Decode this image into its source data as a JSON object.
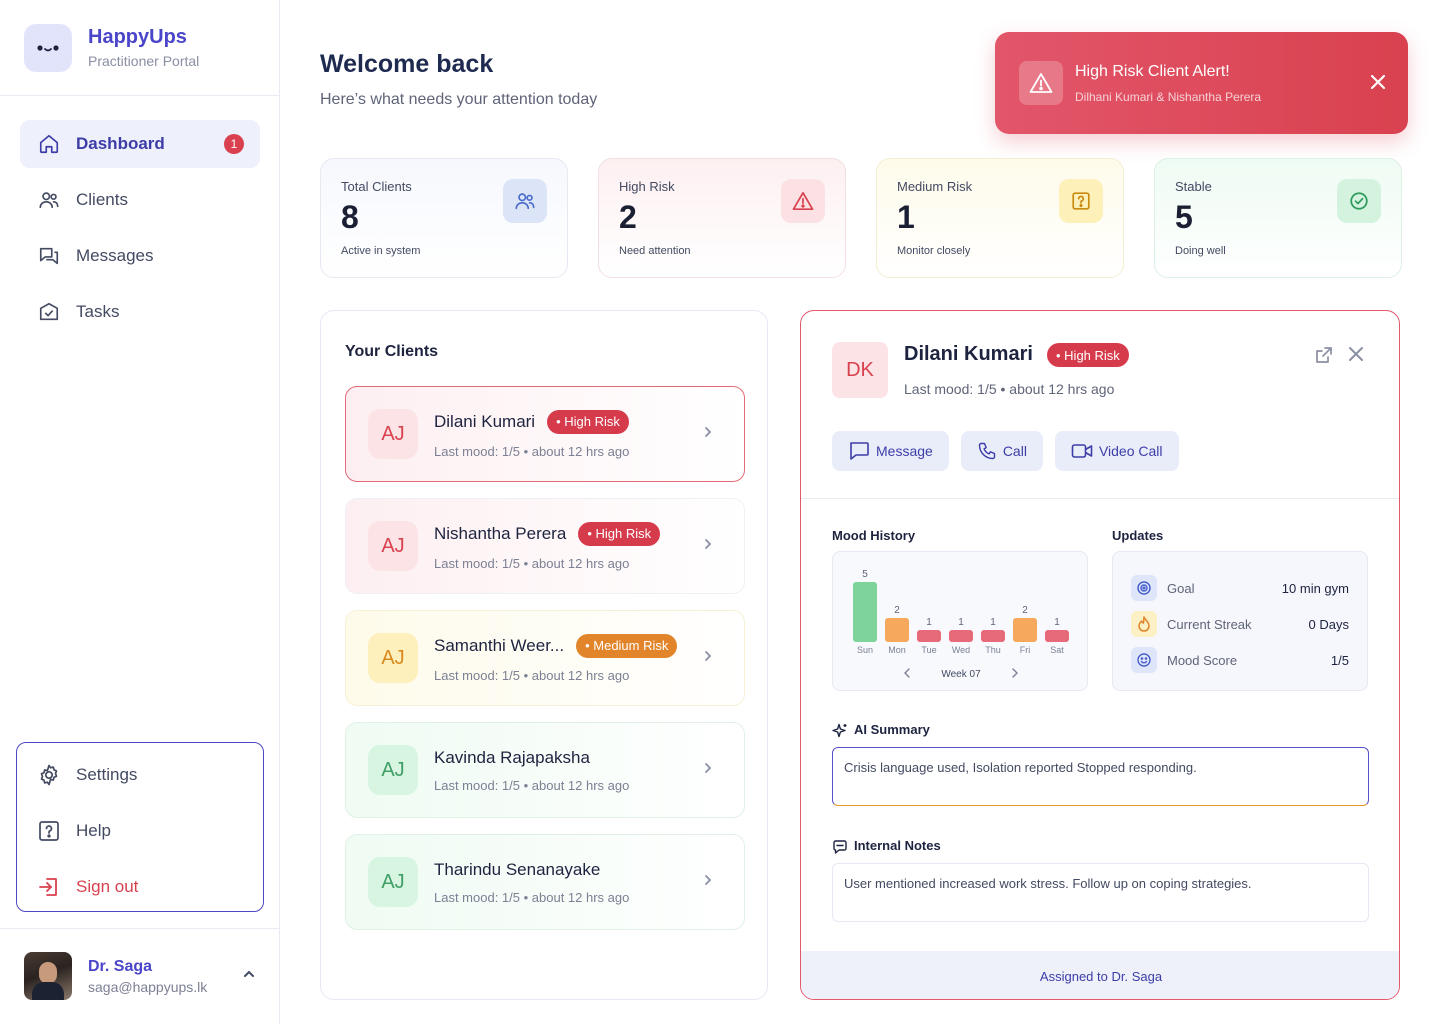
{
  "brand": {
    "name": "HappyUps",
    "subtitle": "Practitioner Portal"
  },
  "nav": [
    {
      "label": "Dashboard",
      "icon": "home-icon",
      "active": true,
      "badge": "1"
    },
    {
      "label": "Clients",
      "icon": "users-icon"
    },
    {
      "label": "Messages",
      "icon": "messages-icon"
    },
    {
      "label": "Tasks",
      "icon": "tasks-icon"
    }
  ],
  "bottom_nav": [
    {
      "label": "Settings",
      "icon": "gear-icon"
    },
    {
      "label": "Help",
      "icon": "help-icon"
    },
    {
      "label": "Sign out",
      "icon": "sign-out-icon"
    }
  ],
  "user": {
    "name": "Dr. Saga",
    "email": "saga@happyups.lk"
  },
  "header": {
    "title": "Welcome back",
    "subtitle": "Here’s what needs your attention today"
  },
  "alert": {
    "title": "High Risk Client Alert!",
    "subtitle": "Dilhani Kumari & Nishantha Perera"
  },
  "stats": [
    {
      "label": "Total Clients",
      "value": "8",
      "sub": "Active in system",
      "icon": "users-icon"
    },
    {
      "label": "High Risk",
      "value": "2",
      "sub": "Need attention",
      "icon": "warning-icon"
    },
    {
      "label": "Medium Risk",
      "value": "1",
      "sub": "Monitor closely",
      "icon": "question-icon"
    },
    {
      "label": "Stable",
      "value": "5",
      "sub": "Doing well",
      "icon": "check-circle-icon"
    }
  ],
  "clients_panel": {
    "title": "Your Clients",
    "clients": [
      {
        "initials": "AJ",
        "name": "Dilani Kumari",
        "risk": "• High Risk",
        "meta": "Last mood: 1/5 • about 12 hrs ago"
      },
      {
        "initials": "AJ",
        "name": "Nishantha Perera",
        "risk": "• High Risk",
        "meta": "Last mood: 1/5 • about 12 hrs ago"
      },
      {
        "initials": "AJ",
        "name": "Samanthi Weer...",
        "risk": "• Medium Risk",
        "meta": "Last mood: 1/5 • about 12 hrs ago"
      },
      {
        "initials": "AJ",
        "name": "Kavinda Rajapaksha",
        "risk": "",
        "meta": "Last mood: 1/5 • about 12 hrs ago"
      },
      {
        "initials": "AJ",
        "name": "Tharindu Senanayake",
        "risk": "",
        "meta": "Last mood: 1/5 • about 12 hrs ago"
      }
    ]
  },
  "detail": {
    "initials": "DK",
    "name": "Dilani Kumari",
    "risk": "• High Risk",
    "meta": "Last mood: 1/5 • about 12 hrs ago",
    "actions": {
      "message": "Message",
      "call": "Call",
      "video": "Video Call"
    },
    "mood_title": "Mood History",
    "updates_title": "Updates",
    "updates": [
      {
        "label": "Goal",
        "value": "10 min gym",
        "icon": "target-icon"
      },
      {
        "label": "Current Streak",
        "value": "0 Days",
        "icon": "flame-icon"
      },
      {
        "label": "Mood Score",
        "value": "1/5",
        "icon": "smile-icon"
      }
    ],
    "ai_title": "AI Summary",
    "ai_text": "Crisis language used, Isolation reported Stopped responding.",
    "notes_title": "Internal Notes",
    "notes_text": "User mentioned increased work stress. Follow up on coping strategies.",
    "assigned": "Assigned to Dr. Saga"
  },
  "chart_data": {
    "type": "bar",
    "categories": [
      "Sun",
      "Mon",
      "Tue",
      "Wed",
      "Thu",
      "Fri",
      "Sat"
    ],
    "values": [
      5,
      2,
      1,
      1,
      1,
      2,
      1
    ],
    "colors": [
      "#7ed39a",
      "#f6a85c",
      "#e66a7a",
      "#e66a7a",
      "#e66a7a",
      "#f6a85c",
      "#e66a7a"
    ],
    "week_label": "Week 07",
    "ylim": [
      0,
      5
    ]
  }
}
